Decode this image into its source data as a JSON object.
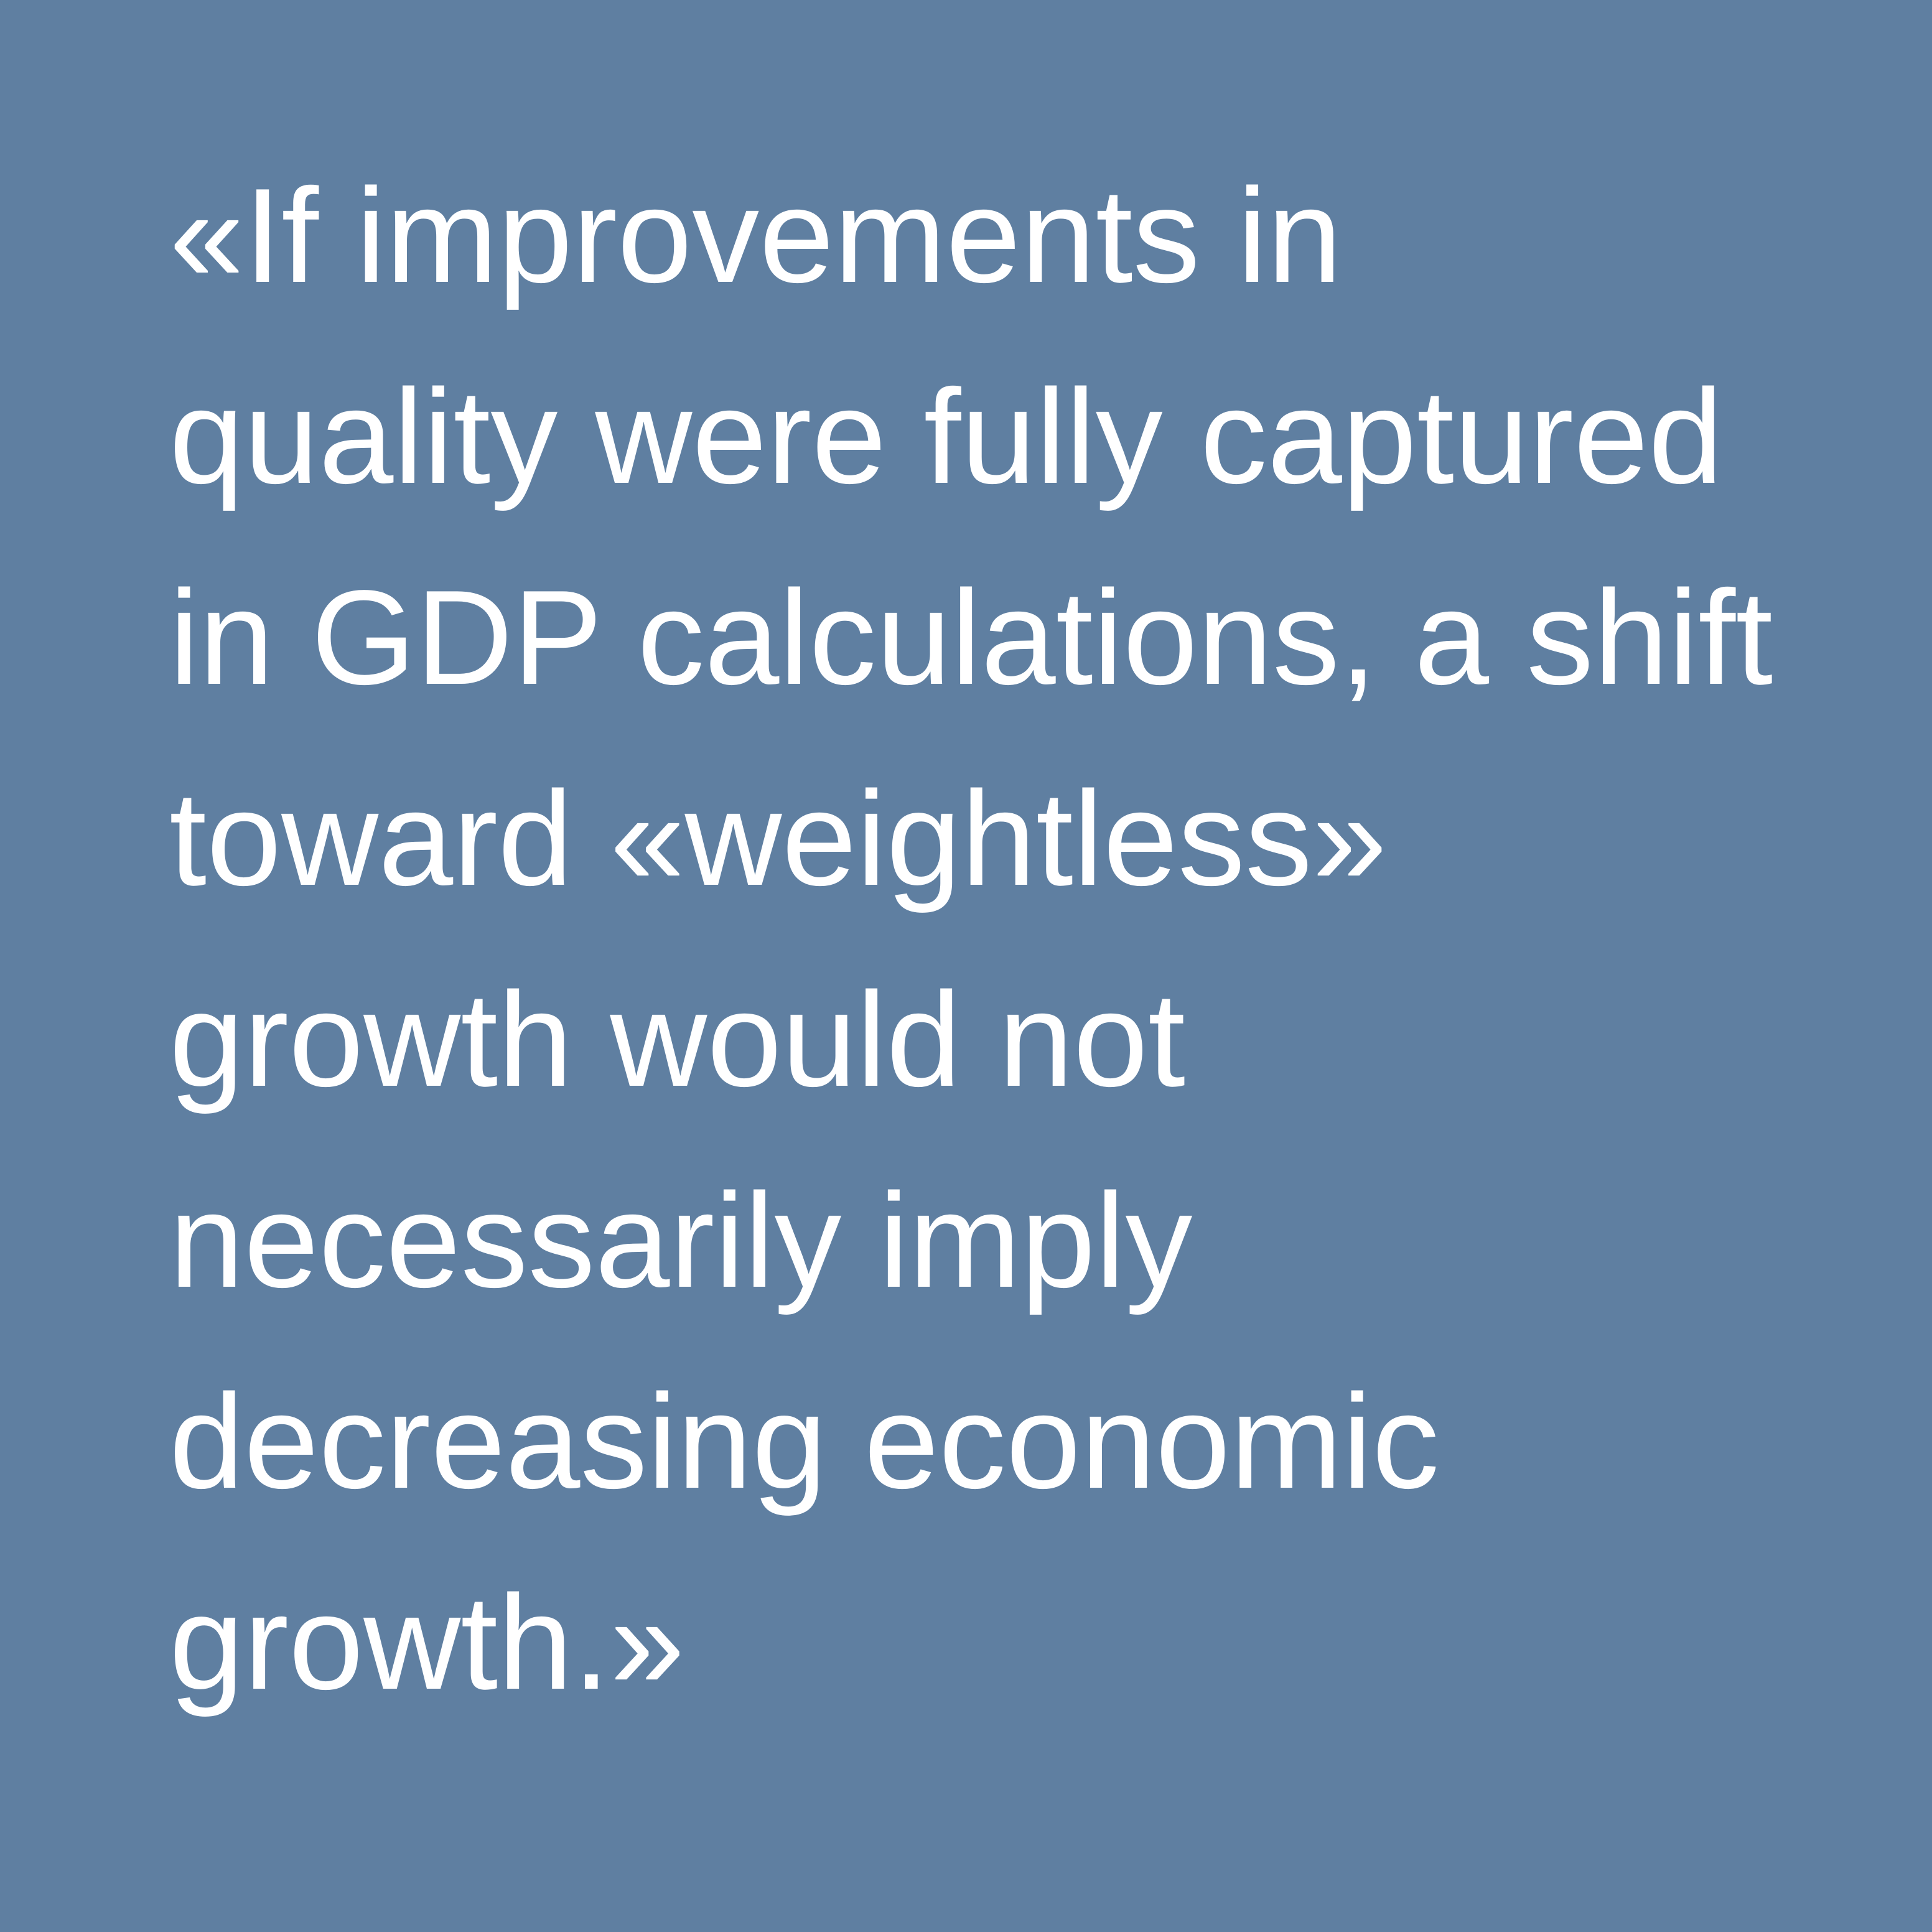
{
  "background_color": "#5f7fa1",
  "text_color": "#ffffff",
  "quote": {
    "lines": [
      "«If improvements in",
      "quality were fully captured",
      "in GDP calculations, a shift",
      "toward «weightless»",
      "growth would not",
      "necessarily imply",
      "decreasing economic",
      "growth.»"
    ]
  }
}
